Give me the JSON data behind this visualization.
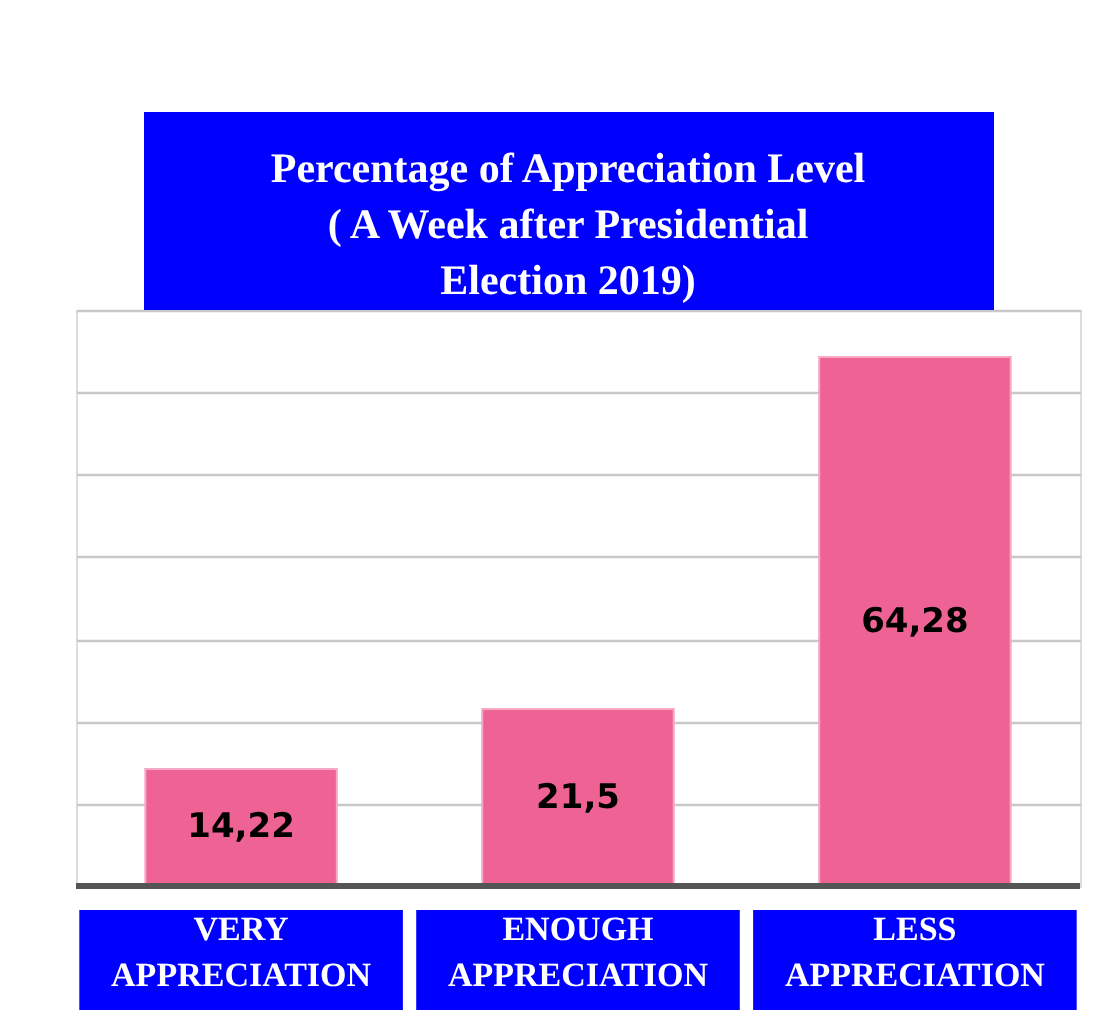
{
  "chart_data": {
    "type": "bar",
    "title": "Percentage of Appreciation Level ( A Week after Presidential Election 2019)",
    "categories": [
      "VERY APPRECIATION",
      "ENOUGH APPRECIATION",
      "LESS APPRECIATION"
    ],
    "values": [
      14.22,
      21.5,
      64.28
    ],
    "value_labels": [
      "14,22",
      "21,5",
      "64,28"
    ],
    "color": "#ef6394",
    "ylim": [
      0,
      70
    ],
    "yticks": [
      {
        "value": 10,
        "label": null
      },
      {
        "value": 20,
        "label": null
      },
      {
        "value": 30,
        "label": null
      },
      {
        "value": 40,
        "label": null
      },
      {
        "value": 50,
        "label": null
      },
      {
        "value": 60,
        "label": null
      },
      {
        "value": 70,
        "label": null
      }
    ],
    "grid": "y",
    "legend": false,
    "tick_labels": false
  }
}
